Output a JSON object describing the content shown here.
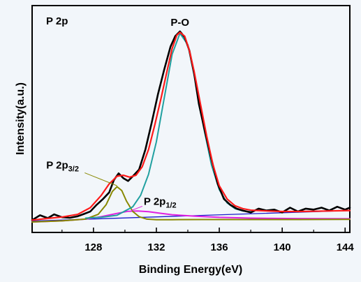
{
  "chart_data": {
    "type": "line",
    "panel_label": "P 2p",
    "xlabel": "Binding Energy(eV)",
    "ylabel": "Intensity(a.u.)",
    "xlim": [
      124.1,
      144.3
    ],
    "ylim": [
      0,
      100
    ],
    "x_ticks": [
      128,
      132,
      136,
      140,
      144
    ],
    "x_tick_labels": [
      "128",
      "132",
      "136",
      "140",
      "144"
    ],
    "y_ticks_shown": false,
    "grid": false,
    "legend": "none",
    "annotations": [
      {
        "text": "P-O",
        "x": 133.5,
        "y": 100
      },
      {
        "base": "P 2p",
        "sub": "3/2",
        "x": 125.0,
        "y": 28,
        "points_to": [
          129.5,
          19
        ]
      },
      {
        "base": "P 2p",
        "sub": "1/2",
        "x": 131.2,
        "y": 9,
        "points_to": [
          130.4,
          6
        ]
      }
    ],
    "series": [
      {
        "color": "#000000",
        "style": "noisy-data",
        "x": [
          124.1,
          124.6,
          125.1,
          125.5,
          126.0,
          126.5,
          127.0,
          127.4,
          127.8,
          128.2,
          128.6,
          129.0,
          129.3,
          129.6,
          129.9,
          130.2,
          130.5,
          130.9,
          131.3,
          131.7,
          132.1,
          132.5,
          132.9,
          133.2,
          133.5,
          133.8,
          134.1,
          134.4,
          134.7,
          135.1,
          135.5,
          135.9,
          136.3,
          136.7,
          137.1,
          137.5,
          138.0,
          138.5,
          139.0,
          139.5,
          140.0,
          140.5,
          141.0,
          141.5,
          142.0,
          142.5,
          143.0,
          143.5,
          144.0,
          144.3
        ],
        "y": [
          1.0,
          3.5,
          2.0,
          4.0,
          2.5,
          2.2,
          3.0,
          4.2,
          5.5,
          9.0,
          12.0,
          15.5,
          22.0,
          25.5,
          23.0,
          21.5,
          24.0,
          27.5,
          38.0,
          52.0,
          67.0,
          80.0,
          92.0,
          97.5,
          100.0,
          97.0,
          90.0,
          78.0,
          62.0,
          47.0,
          33.0,
          20.0,
          12.0,
          9.0,
          7.0,
          6.0,
          5.0,
          7.0,
          6.0,
          6.5,
          5.0,
          7.5,
          5.5,
          7.0,
          6.5,
          7.5,
          6.0,
          8.0,
          6.5,
          7.5
        ]
      },
      {
        "color": "#ff1a1a",
        "style": "envelope-fit",
        "x": [
          124.1,
          125.0,
          126.0,
          127.0,
          127.8,
          128.5,
          129.0,
          129.5,
          129.9,
          130.3,
          130.7,
          131.1,
          131.5,
          131.9,
          132.3,
          132.7,
          133.0,
          133.3,
          133.5,
          133.8,
          134.1,
          134.4,
          134.8,
          135.2,
          135.6,
          136.0,
          136.5,
          137.0,
          137.5,
          138.0,
          139.0,
          140.0,
          141.0,
          142.0,
          143.0,
          144.3
        ],
        "y": [
          1.0,
          1.8,
          2.6,
          4.0,
          7.5,
          14.0,
          20.0,
          24.0,
          24.5,
          23.5,
          24.5,
          29.0,
          38.0,
          51.0,
          65.0,
          80.0,
          91.0,
          98.0,
          99.5,
          97.5,
          90.0,
          79.0,
          62.0,
          45.0,
          30.0,
          19.0,
          12.0,
          8.5,
          7.0,
          6.2,
          5.8,
          5.5,
          5.5,
          5.6,
          5.8,
          6.0
        ]
      },
      {
        "color": "#20a0a0",
        "style": "component-fit",
        "x": [
          127.5,
          128.5,
          129.5,
          130.5,
          131.0,
          131.5,
          132.0,
          132.5,
          133.0,
          133.5,
          134.0,
          134.5,
          135.0,
          135.5,
          136.0,
          136.5,
          137.0,
          137.5,
          138.0
        ],
        "y": [
          2.0,
          2.5,
          3.5,
          8.0,
          14.0,
          25.0,
          42.0,
          65.0,
          88.0,
          99.0,
          93.0,
          73.0,
          50.0,
          30.0,
          17.0,
          10.0,
          7.0,
          5.8,
          5.4
        ]
      },
      {
        "color": "#888800",
        "style": "component-fit",
        "x": [
          124.1,
          126.0,
          127.5,
          128.3,
          128.8,
          129.2,
          129.5,
          129.8,
          130.1,
          130.5,
          130.9,
          131.4,
          132.0,
          133.0,
          135.0,
          138.0,
          141.0,
          144.3
        ],
        "y": [
          0.0,
          0.6,
          1.5,
          4.0,
          9.0,
          16.0,
          18.5,
          16.5,
          11.0,
          5.5,
          2.8,
          1.5,
          1.2,
          1.2,
          1.3,
          1.3,
          1.3,
          1.4
        ]
      },
      {
        "color": "#e020e0",
        "style": "component-fit",
        "x": [
          124.1,
          126.0,
          127.5,
          128.5,
          129.5,
          130.2,
          130.8,
          131.5,
          132.2,
          133.0,
          134.5,
          136.0,
          138.0,
          141.0,
          144.3
        ],
        "y": [
          0.0,
          0.6,
          1.5,
          2.8,
          4.5,
          5.6,
          5.8,
          5.4,
          4.6,
          3.8,
          3.0,
          2.4,
          2.0,
          1.8,
          1.7
        ]
      },
      {
        "color": "#1a1acc",
        "style": "baseline",
        "x": [
          124.1,
          144.3
        ],
        "y": [
          0.5,
          6.0
        ]
      }
    ]
  }
}
